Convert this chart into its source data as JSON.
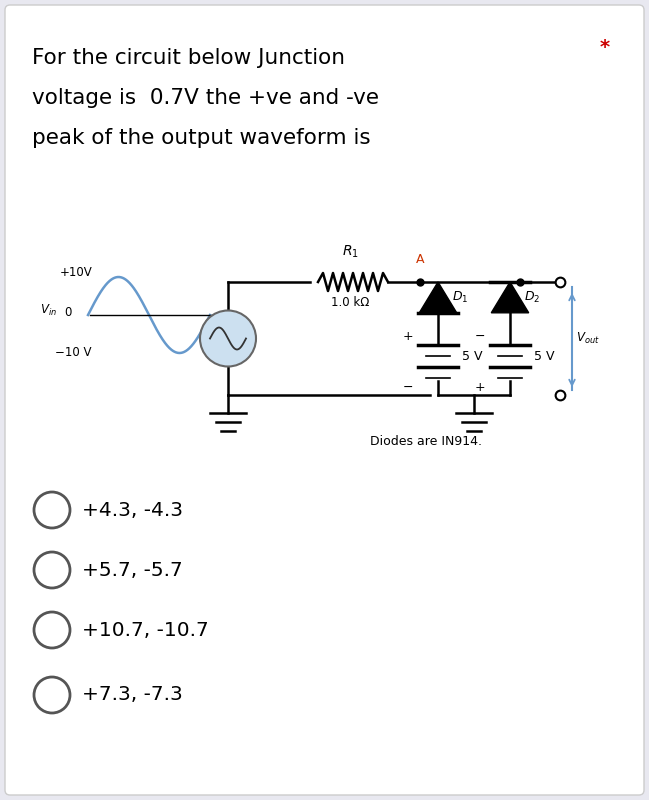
{
  "title_line1": "For the circuit below Junction",
  "title_line2": "voltage is  0.7V the +ve and -ve",
  "title_line3": "peak of the output waveform is",
  "asterisk": "*",
  "asterisk_color": "#cc0000",
  "bg_color": "#e8e8f0",
  "card_color": "#ffffff",
  "options": [
    "+4.3, -4.3",
    "+5.7, -5.7",
    "+10.7, -10.7",
    "+7.3, -7.3"
  ],
  "circuit_label_diodes": "Diodes are IN914.",
  "waveform_color": "#6699cc",
  "label_A_color": "#cc3300"
}
